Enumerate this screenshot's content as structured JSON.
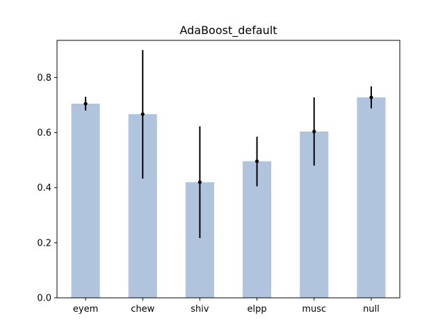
{
  "chart_data": {
    "type": "bar",
    "title": "AdaBoost_default",
    "xlabel": "",
    "ylabel": "",
    "categories": [
      "eyem",
      "chew",
      "shiv",
      "elpp",
      "musc",
      "null"
    ],
    "values": [
      0.705,
      0.667,
      0.42,
      0.496,
      0.604,
      0.728
    ],
    "error_low": [
      0.68,
      0.433,
      0.217,
      0.405,
      0.48,
      0.688
    ],
    "error_high": [
      0.73,
      0.9,
      0.623,
      0.585,
      0.728,
      0.768
    ],
    "ylim": [
      0,
      0.935
    ],
    "yticks": [
      0.0,
      0.2,
      0.4,
      0.6,
      0.8
    ],
    "ytick_labels": [
      "0.0",
      "0.2",
      "0.4",
      "0.6",
      "0.8"
    ],
    "grid": false,
    "bar_color": "#b0c4de",
    "error_color": "#000000"
  }
}
